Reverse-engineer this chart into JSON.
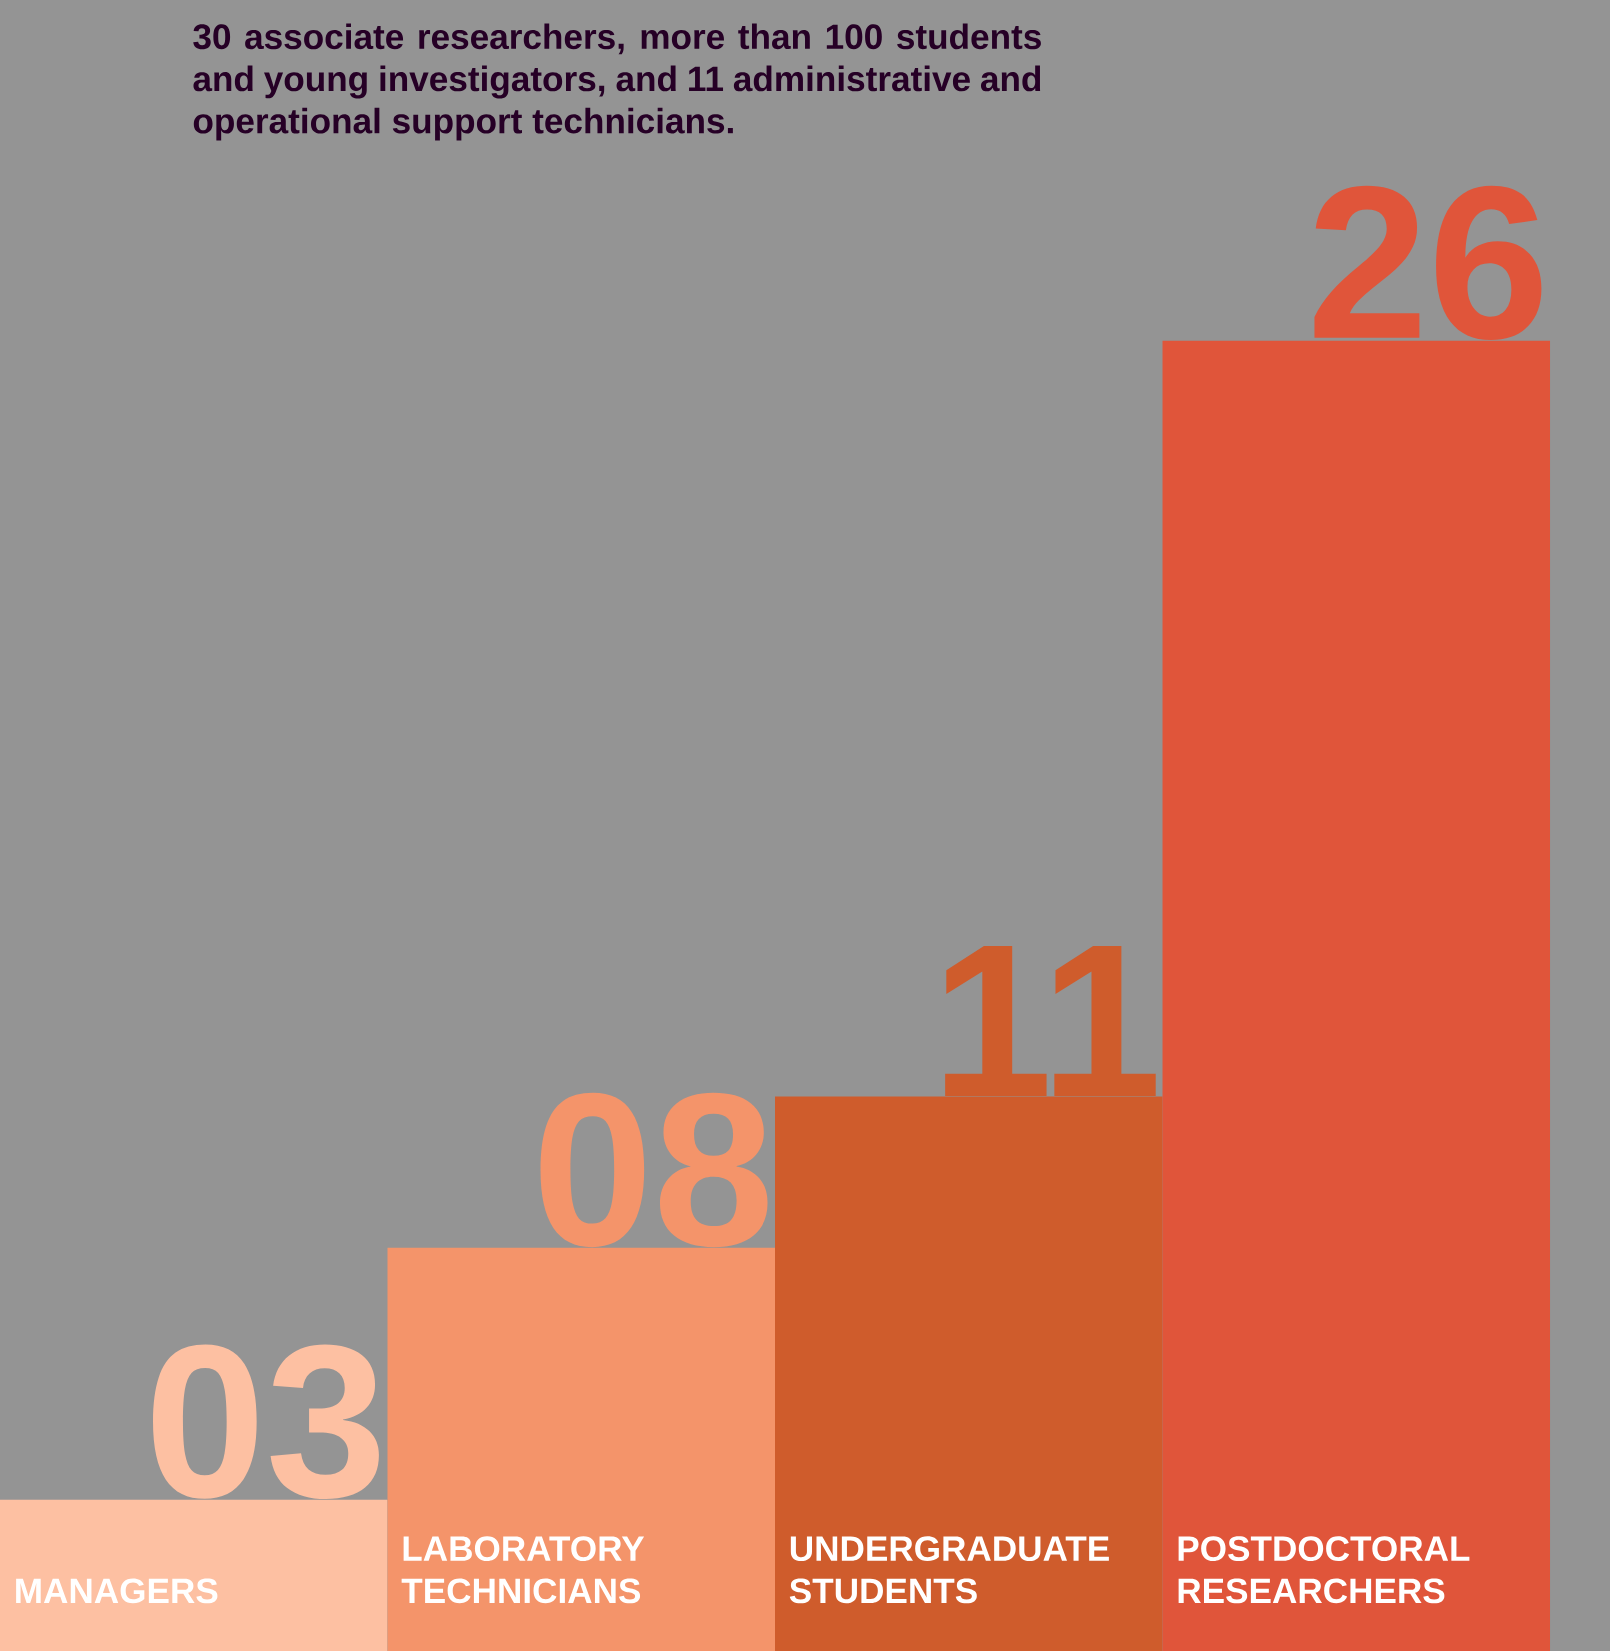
{
  "chart_data": {
    "type": "bar",
    "annotations": [
      "30 associate researchers, more than 100 students and young investigators, and 11 administrative and operational support technicians."
    ],
    "categories": [
      "MANAGERS",
      "LABORATORY TECHNICIANS",
      "UNDERGRADUATE STUDENTS",
      "POSTDOCTORAL RESEARCHERS"
    ],
    "values": [
      3,
      8,
      11,
      26
    ],
    "colors": [
      "#fdc0a2",
      "#f4946a",
      "#cf5c2c",
      "#e0553a"
    ],
    "value_labels": [
      "03",
      "08",
      "11",
      "26"
    ]
  }
}
